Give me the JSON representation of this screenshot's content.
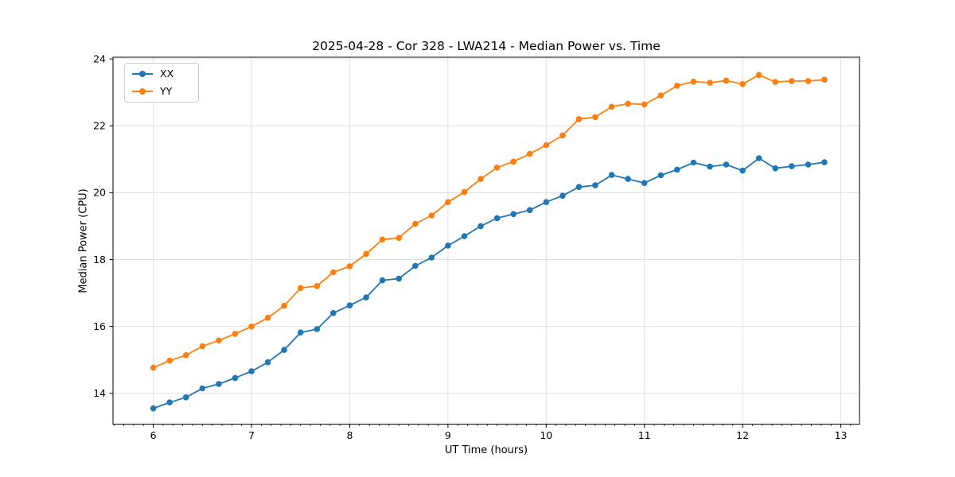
{
  "title": "2025-04-28 - Cor 328 - LWA214 - Median Power vs. Time",
  "xlabel": "UT Time (hours)",
  "ylabel": "Median Power (CPU)",
  "legend": {
    "position": "upper left",
    "items": [
      {
        "label": "XX",
        "color": "#1f77b4"
      },
      {
        "label": "YY",
        "color": "#ff7f0e"
      }
    ]
  },
  "chart_data": {
    "type": "line",
    "title": "2025-04-28 - Cor 328 - LWA214 - Median Power vs. Time",
    "xlabel": "UT Time (hours)",
    "ylabel": "Median Power (CPU)",
    "xlim": [
      5.59,
      13.19
    ],
    "ylim": [
      13.08,
      24.05
    ],
    "xticks": [
      6,
      7,
      8,
      9,
      10,
      11,
      12,
      13
    ],
    "yticks": [
      14,
      16,
      18,
      20,
      22,
      24
    ],
    "minor_xtick_step": 0.1,
    "grid": true,
    "grid_color": "#dedede",
    "legend_position": "upper left",
    "marker": "circle",
    "x": [
      6.0,
      6.167,
      6.333,
      6.5,
      6.667,
      6.833,
      7.0,
      7.167,
      7.333,
      7.5,
      7.667,
      7.833,
      8.0,
      8.167,
      8.333,
      8.5,
      8.667,
      8.833,
      9.0,
      9.167,
      9.333,
      9.5,
      9.667,
      9.833,
      10.0,
      10.167,
      10.333,
      10.5,
      10.667,
      10.833,
      11.0,
      11.167,
      11.333,
      11.5,
      11.667,
      11.833,
      12.0,
      12.167,
      12.333,
      12.5,
      12.667,
      12.833
    ],
    "series": [
      {
        "name": "XX",
        "color": "#1f77b4",
        "values": [
          13.55,
          13.73,
          13.88,
          14.15,
          14.28,
          14.46,
          14.66,
          14.93,
          15.3,
          15.82,
          15.92,
          16.4,
          16.63,
          16.87,
          17.38,
          17.43,
          17.81,
          18.06,
          18.42,
          18.7,
          19.0,
          19.24,
          19.36,
          19.48,
          19.72,
          19.91,
          20.17,
          20.22,
          20.53,
          20.41,
          20.29,
          20.52,
          20.69,
          20.9,
          20.78,
          20.84,
          20.66,
          21.03,
          20.73,
          20.79,
          20.84,
          20.91
        ]
      },
      {
        "name": "YY",
        "color": "#ff7f0e",
        "values": [
          14.77,
          14.98,
          15.14,
          15.41,
          15.58,
          15.78,
          16.0,
          16.26,
          16.62,
          17.15,
          17.21,
          17.62,
          17.8,
          18.17,
          18.6,
          18.65,
          19.07,
          19.32,
          19.72,
          20.02,
          20.41,
          20.75,
          20.93,
          21.16,
          21.42,
          21.71,
          22.2,
          22.26,
          22.57,
          22.66,
          22.64,
          22.91,
          23.2,
          23.32,
          23.29,
          23.35,
          23.25,
          23.52,
          23.31,
          23.34,
          23.34,
          23.38
        ]
      }
    ]
  }
}
